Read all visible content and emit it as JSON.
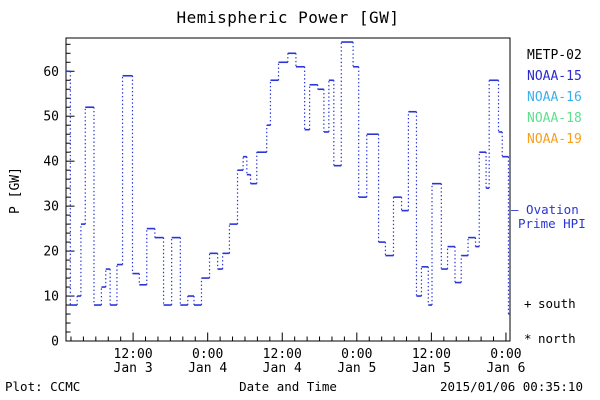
{
  "title": "Hemispheric Power [GW]",
  "ylabel": "P [GW]",
  "xlabel": "Date and Time",
  "footer": {
    "left": "Plot: CCMC",
    "right": "2015/01/06 00:35:10"
  },
  "legend_satellites": [
    {
      "label": "METP-02",
      "color": "#000000"
    },
    {
      "label": "NOAA-15",
      "color": "#2a2ad0"
    },
    {
      "label": "NOAA-16",
      "color": "#3ab0f0"
    },
    {
      "label": "NOAA-18",
      "color": "#5fe08f"
    },
    {
      "label": "NOAA-19",
      "color": "#f8a01e"
    }
  ],
  "ovation_legend": {
    "line1": "– Ovation",
    "line2": "Prime HPI",
    "color": "#2a35d8"
  },
  "hemisphere_markers": [
    {
      "symbol": "+",
      "label": "south"
    },
    {
      "symbol": "*",
      "label": "north"
    }
  ],
  "chart_data": {
    "type": "line",
    "subtype": "step-post with dotted risers",
    "title": "Hemispheric Power [GW]",
    "xlabel": "Date and Time",
    "ylabel": "P [GW]",
    "series_name": "Ovation Prime HPI",
    "line_color": "#2a35d8",
    "x_unit": "hours since 2015-01-03 00:00",
    "x_start": 1.2,
    "x_end": 72.65,
    "ylim": [
      0,
      67.4
    ],
    "y_ticks": [
      0,
      10,
      20,
      30,
      40,
      50,
      60
    ],
    "y_minor_step": 2,
    "x_minor_step": 2,
    "grid": false,
    "x_ticks": [
      {
        "t": 12,
        "time": "12:00",
        "date": "Jan 3"
      },
      {
        "t": 24,
        "time": "0:00",
        "date": "Jan 4"
      },
      {
        "t": 36,
        "time": "12:00",
        "date": "Jan 4"
      },
      {
        "t": 48,
        "time": "0:00",
        "date": "Jan 5"
      },
      {
        "t": 60,
        "time": "12:00",
        "date": "Jan 5"
      },
      {
        "t": 72,
        "time": "0:00",
        "date": "Jan 6"
      }
    ],
    "steps": [
      [
        1.2,
        60
      ],
      [
        1.9,
        8
      ],
      [
        3.0,
        10
      ],
      [
        3.6,
        26
      ],
      [
        4.3,
        52
      ],
      [
        5.7,
        8
      ],
      [
        6.9,
        12
      ],
      [
        7.6,
        16
      ],
      [
        8.3,
        8
      ],
      [
        9.4,
        17
      ],
      [
        10.3,
        59
      ],
      [
        11.9,
        15
      ],
      [
        13.0,
        12.5
      ],
      [
        14.2,
        25
      ],
      [
        15.5,
        23
      ],
      [
        16.9,
        8
      ],
      [
        18.2,
        23
      ],
      [
        19.6,
        8
      ],
      [
        20.8,
        10
      ],
      [
        21.8,
        8
      ],
      [
        23.0,
        14
      ],
      [
        24.3,
        19.5
      ],
      [
        25.6,
        16
      ],
      [
        26.4,
        19.5
      ],
      [
        27.5,
        26
      ],
      [
        28.8,
        38
      ],
      [
        29.7,
        41
      ],
      [
        30.3,
        37
      ],
      [
        30.9,
        35
      ],
      [
        31.9,
        42
      ],
      [
        33.5,
        48
      ],
      [
        34.1,
        58
      ],
      [
        35.4,
        62
      ],
      [
        36.9,
        64
      ],
      [
        38.2,
        61
      ],
      [
        39.6,
        47
      ],
      [
        40.4,
        57
      ],
      [
        41.7,
        56
      ],
      [
        42.7,
        46.5
      ],
      [
        43.5,
        58
      ],
      [
        44.3,
        39
      ],
      [
        45.5,
        66.5
      ],
      [
        47.4,
        61
      ],
      [
        48.3,
        32
      ],
      [
        49.6,
        46
      ],
      [
        51.5,
        22
      ],
      [
        52.6,
        19
      ],
      [
        53.9,
        32
      ],
      [
        55.2,
        29
      ],
      [
        56.3,
        51
      ],
      [
        57.6,
        10
      ],
      [
        58.4,
        16.5
      ],
      [
        59.5,
        8
      ],
      [
        60.1,
        35
      ],
      [
        61.6,
        16
      ],
      [
        62.6,
        21
      ],
      [
        63.8,
        13
      ],
      [
        64.8,
        19
      ],
      [
        65.9,
        23
      ],
      [
        67.1,
        21
      ],
      [
        67.7,
        42
      ],
      [
        68.8,
        34
      ],
      [
        69.3,
        58
      ],
      [
        70.8,
        46.5
      ],
      [
        71.4,
        41
      ],
      [
        72.4,
        6
      ]
    ]
  }
}
